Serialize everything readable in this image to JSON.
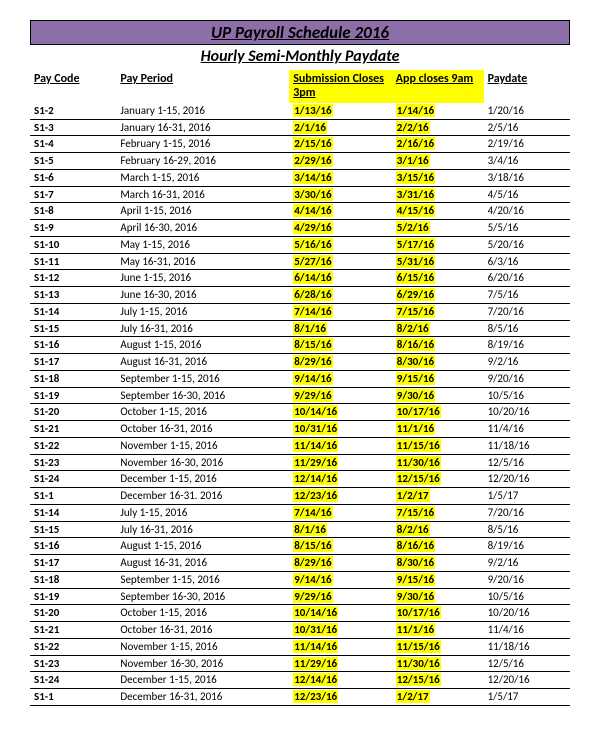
{
  "title": "UP Payroll Schedule 2016",
  "subtitle": "Hourly Semi-Monthly Paydate",
  "colors": {
    "title_bar_bg": "#8c6fa8",
    "highlight": "#ffff00",
    "border": "#000000",
    "background": "#ffffff"
  },
  "columns": [
    {
      "label": "Pay Code",
      "highlight": false
    },
    {
      "label": "Pay Period",
      "highlight": false
    },
    {
      "label": "Submission Closes 3pm",
      "highlight": true
    },
    {
      "label": "App closes 9am",
      "highlight": true
    },
    {
      "label": "Paydate",
      "highlight": false
    }
  ],
  "rows": [
    {
      "code": "S1-2",
      "period": "January 1-15, 2016",
      "submission": "1/13/16",
      "app": "1/14/16",
      "paydate": "1/20/16"
    },
    {
      "code": "S1-3",
      "period": "January 16-31, 2016",
      "submission": "2/1/16",
      "app": "2/2/16",
      "paydate": "2/5/16"
    },
    {
      "code": "S1-4",
      "period": "February 1-15, 2016",
      "submission": "2/15/16",
      "app": "2/16/16",
      "paydate": "2/19/16"
    },
    {
      "code": "S1-5",
      "period": "February 16-29, 2016",
      "submission": "2/29/16",
      "app": "3/1/16",
      "paydate": "3/4/16"
    },
    {
      "code": "S1-6",
      "period": "March 1-15, 2016",
      "submission": "3/14/16",
      "app": "3/15/16",
      "paydate": "3/18/16"
    },
    {
      "code": "S1-7",
      "period": "March 16-31, 2016",
      "submission": "3/30/16",
      "app": "3/31/16",
      "paydate": "4/5/16"
    },
    {
      "code": "S1-8",
      "period": "April 1-15, 2016",
      "submission": "4/14/16",
      "app": "4/15/16",
      "paydate": "4/20/16"
    },
    {
      "code": "S1-9",
      "period": "April 16-30, 2016",
      "submission": "4/29/16",
      "app": "5/2/16",
      "paydate": "5/5/16"
    },
    {
      "code": "S1-10",
      "period": "May 1-15, 2016",
      "submission": "5/16/16",
      "app": "5/17/16",
      "paydate": "5/20/16"
    },
    {
      "code": "S1-11",
      "period": "May 16-31, 2016",
      "submission": "5/27/16",
      "app": "5/31/16",
      "paydate": "6/3/16"
    },
    {
      "code": "S1-12",
      "period": "June 1-15, 2016",
      "submission": "6/14/16",
      "app": "6/15/16",
      "paydate": "6/20/16"
    },
    {
      "code": "S1-13",
      "period": "June 16-30, 2016",
      "submission": "6/28/16",
      "app": "6/29/16",
      "paydate": "7/5/16"
    },
    {
      "code": "S1-14",
      "period": "July 1-15, 2016",
      "submission": "7/14/16",
      "app": "7/15/16",
      "paydate": "7/20/16"
    },
    {
      "code": "S1-15",
      "period": "July 16-31, 2016",
      "submission": "8/1/16",
      "app": "8/2/16",
      "paydate": "8/5/16"
    },
    {
      "code": "S1-16",
      "period": "August 1-15, 2016",
      "submission": "8/15/16",
      "app": "8/16/16",
      "paydate": "8/19/16"
    },
    {
      "code": "S1-17",
      "period": "August 16-31, 2016",
      "submission": "8/29/16",
      "app": "8/30/16",
      "paydate": "9/2/16"
    },
    {
      "code": "S1-18",
      "period": "September 1-15, 2016",
      "submission": "9/14/16",
      "app": "9/15/16",
      "paydate": "9/20/16"
    },
    {
      "code": "S1-19",
      "period": "September 16-30, 2016",
      "submission": "9/29/16",
      "app": "9/30/16",
      "paydate": "10/5/16"
    },
    {
      "code": "S1-20",
      "period": "October 1-15, 2016",
      "submission": "10/14/16",
      "app": "10/17/16",
      "paydate": "10/20/16"
    },
    {
      "code": "S1-21",
      "period": "October 16-31, 2016",
      "submission": "10/31/16",
      "app": "11/1/16",
      "paydate": "11/4/16"
    },
    {
      "code": "S1-22",
      "period": "November 1-15, 2016",
      "submission": "11/14/16",
      "app": "11/15/16",
      "paydate": "11/18/16"
    },
    {
      "code": "S1-23",
      "period": "November 16-30, 2016",
      "submission": "11/29/16",
      "app": "11/30/16",
      "paydate": "12/5/16"
    },
    {
      "code": "S1-24",
      "period": "December 1-15, 2016",
      "submission": "12/14/16",
      "app": "12/15/16",
      "paydate": "12/20/16"
    },
    {
      "code": "S1-1",
      "period": "December 16-31. 2016",
      "submission": "12/23/16",
      "app": "1/2/17",
      "paydate": "1/5/17"
    },
    {
      "code": "S1-14",
      "period": "July 1-15, 2016",
      "submission": "7/14/16",
      "app": "7/15/16",
      "paydate": "7/20/16"
    },
    {
      "code": "S1-15",
      "period": "July 16-31, 2016",
      "submission": "8/1/16",
      "app": "8/2/16",
      "paydate": "8/5/16"
    },
    {
      "code": "S1-16",
      "period": "August 1-15, 2016",
      "submission": "8/15/16",
      "app": "8/16/16",
      "paydate": "8/19/16"
    },
    {
      "code": "S1-17",
      "period": "August 16-31, 2016",
      "submission": "8/29/16",
      "app": "8/30/16",
      "paydate": "9/2/16"
    },
    {
      "code": "S1-18",
      "period": "September 1-15, 2016",
      "submission": "9/14/16",
      "app": "9/15/16",
      "paydate": "9/20/16"
    },
    {
      "code": "S1-19",
      "period": "September 16-30, 2016",
      "submission": "9/29/16",
      "app": "9/30/16",
      "paydate": "10/5/16"
    },
    {
      "code": "S1-20",
      "period": "October 1-15, 2016",
      "submission": "10/14/16",
      "app": "10/17/16",
      "paydate": "10/20/16"
    },
    {
      "code": "S1-21",
      "period": "October 16-31, 2016",
      "submission": "10/31/16",
      "app": "11/1/16",
      "paydate": "11/4/16"
    },
    {
      "code": "S1-22",
      "period": "November 1-15, 2016",
      "submission": "11/14/16",
      "app": "11/15/16",
      "paydate": "11/18/16"
    },
    {
      "code": "S1-23",
      "period": "November 16-30, 2016",
      "submission": "11/29/16",
      "app": "11/30/16",
      "paydate": "12/5/16"
    },
    {
      "code": "S1-24",
      "period": "December 1-15, 2016",
      "submission": "12/14/16",
      "app": "12/15/16",
      "paydate": "12/20/16"
    },
    {
      "code": "S1-1",
      "period": "December 16-31, 2016",
      "submission": "12/23/16",
      "app": "1/2/17",
      "paydate": "1/5/17"
    }
  ]
}
